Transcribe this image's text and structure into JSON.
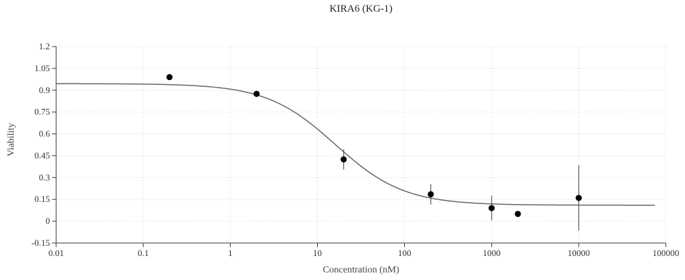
{
  "chart_data": {
    "type": "scatter",
    "title": "KIRA6 (KG-1)",
    "xlabel": "Concentration (nM)",
    "ylabel": "Viability",
    "x_scale": "log",
    "xlim": [
      0.01,
      100000
    ],
    "ylim": [
      -0.15,
      1.2
    ],
    "x_ticks": [
      0.01,
      0.1,
      1,
      10,
      100,
      1000,
      10000,
      100000
    ],
    "x_tick_labels": [
      "0.01",
      "0.1",
      "1",
      "10",
      "100",
      "1000",
      "10000",
      "100000"
    ],
    "y_ticks": [
      -0.15,
      0,
      0.15,
      0.3,
      0.45,
      0.6,
      0.75,
      0.9,
      1.05,
      1.2
    ],
    "y_tick_labels": [
      "-0.15",
      "0",
      "0.15",
      "0.3",
      "0.45",
      "0.6",
      "0.75",
      "0.9",
      "1.05",
      "1.2"
    ],
    "grid": true,
    "series": [
      {
        "points": [
          {
            "x": 0.2,
            "y": 0.99
          },
          {
            "x": 2,
            "y": 0.875
          },
          {
            "x": 20,
            "y": 0.425,
            "err": 0.07
          },
          {
            "x": 200,
            "y": 0.185,
            "err": 0.07
          },
          {
            "x": 1000,
            "y": 0.09,
            "err": 0.085
          },
          {
            "x": 2000,
            "y": 0.05
          },
          {
            "x": 10000,
            "y": 0.16,
            "err": 0.225
          }
        ]
      }
    ],
    "fit_curve": {
      "model": "4-parameter logistic",
      "top": 0.945,
      "bottom": 0.11,
      "ic50": 16,
      "hill": 1.1
    }
  }
}
